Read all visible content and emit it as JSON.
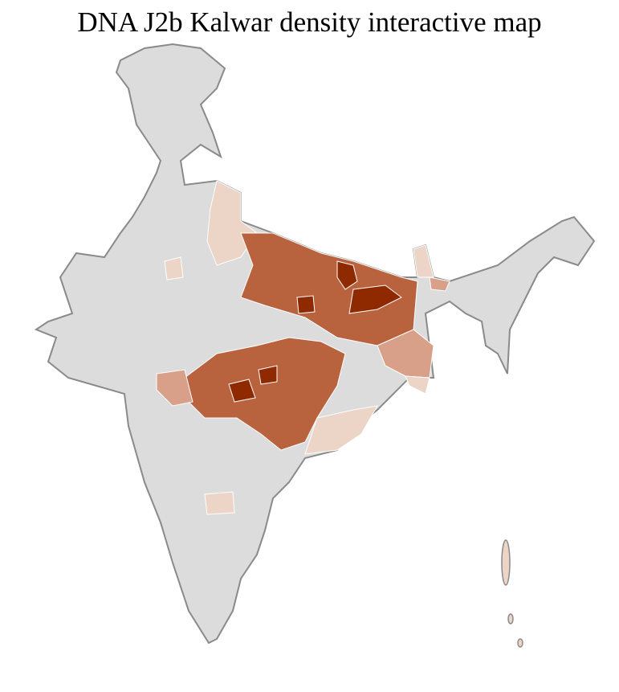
{
  "title": "DNA J2b Kalwar density interactive map",
  "colors": {
    "no_data": "#dcdcdc",
    "very_low": "#ecd4c7",
    "low": "#d8a088",
    "medium": "#b9623e",
    "high": "#8f2a00",
    "state_border": "#8a8a8a",
    "district_border": "#ffffff"
  }
}
